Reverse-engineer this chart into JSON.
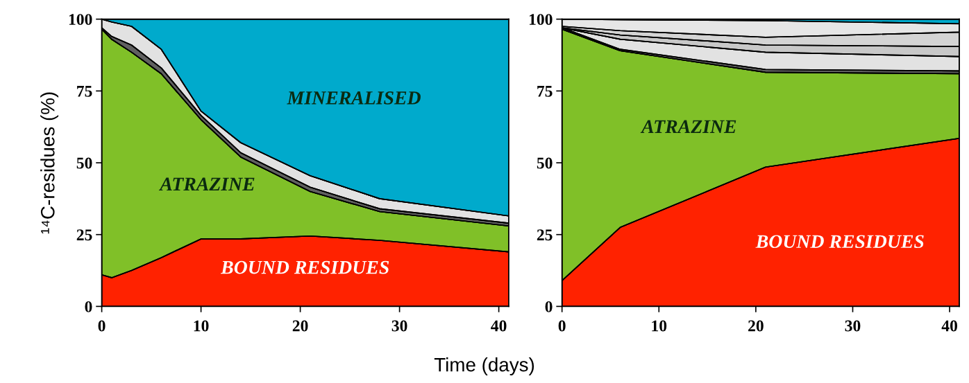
{
  "chart_data": [
    {
      "type": "area",
      "stacked": true,
      "ylabel": "¹⁴C-residues (%)",
      "xlabel": "Time (days)",
      "x": [
        0,
        1,
        3,
        6,
        10,
        14,
        21,
        28,
        41
      ],
      "xlim": [
        0,
        41
      ],
      "xticks": [
        0,
        10,
        20,
        30,
        40
      ],
      "ylim": [
        0,
        100
      ],
      "yticks": [
        0,
        25,
        50,
        75,
        100
      ],
      "grid": false,
      "series": [
        {
          "color": "#ff2200",
          "values": [
            11,
            10,
            12.5,
            17,
            23.5,
            23.5,
            24.5,
            23,
            19
          ]
        },
        {
          "color": "#80c028",
          "values": [
            85.5,
            83,
            76,
            64,
            41.5,
            28.5,
            15.5,
            10,
            9
          ]
        },
        {
          "color": "#606060",
          "values": [
            0.5,
            1,
            2.5,
            2,
            1.5,
            1.5,
            1.5,
            1,
            1
          ]
        },
        {
          "color": "#e2e2e2",
          "values": [
            3,
            5,
            6.5,
            6.5,
            1.5,
            3.5,
            4,
            3.5,
            2.5
          ]
        },
        {
          "color": "#00aacc",
          "values": [
            0,
            1,
            2.5,
            10.5,
            32,
            43,
            54.5,
            62.5,
            68.5
          ]
        }
      ],
      "annotations": [
        "MINERALISED",
        "ATRAZINE",
        "BOUND RESIDUES"
      ]
    },
    {
      "type": "area",
      "stacked": true,
      "x": [
        0,
        6,
        21,
        41
      ],
      "xlim": [
        0,
        41
      ],
      "xticks": [
        0,
        10,
        20,
        30,
        40
      ],
      "ylim": [
        0,
        100
      ],
      "yticks": [
        0,
        25,
        50,
        75,
        100
      ],
      "grid": false,
      "series": [
        {
          "color": "#ff2200",
          "values": [
            9,
            27.5,
            48.5,
            58.5
          ]
        },
        {
          "color": "#80c028",
          "values": [
            87.5,
            61.5,
            33,
            22.5
          ]
        },
        {
          "color": "#606060",
          "values": [
            0.5,
            0.5,
            1,
            1
          ]
        },
        {
          "color": "#e2e2e2",
          "values": [
            0,
            3.5,
            6,
            5
          ]
        },
        {
          "color": "#c8c8c8",
          "values": [
            0,
            1.5,
            2.5,
            3.5
          ]
        },
        {
          "color": "#d4d4d4",
          "values": [
            0.5,
            1.5,
            2.7,
            5
          ]
        },
        {
          "color": "#e6e6e6",
          "values": [
            2.5,
            3.8,
            5.8,
            2.9
          ]
        },
        {
          "color": "#00aacc",
          "values": [
            0,
            0.2,
            0.5,
            1.6
          ]
        }
      ],
      "annotations": [
        "ATRAZINE",
        "BOUND RESIDUES"
      ]
    }
  ]
}
